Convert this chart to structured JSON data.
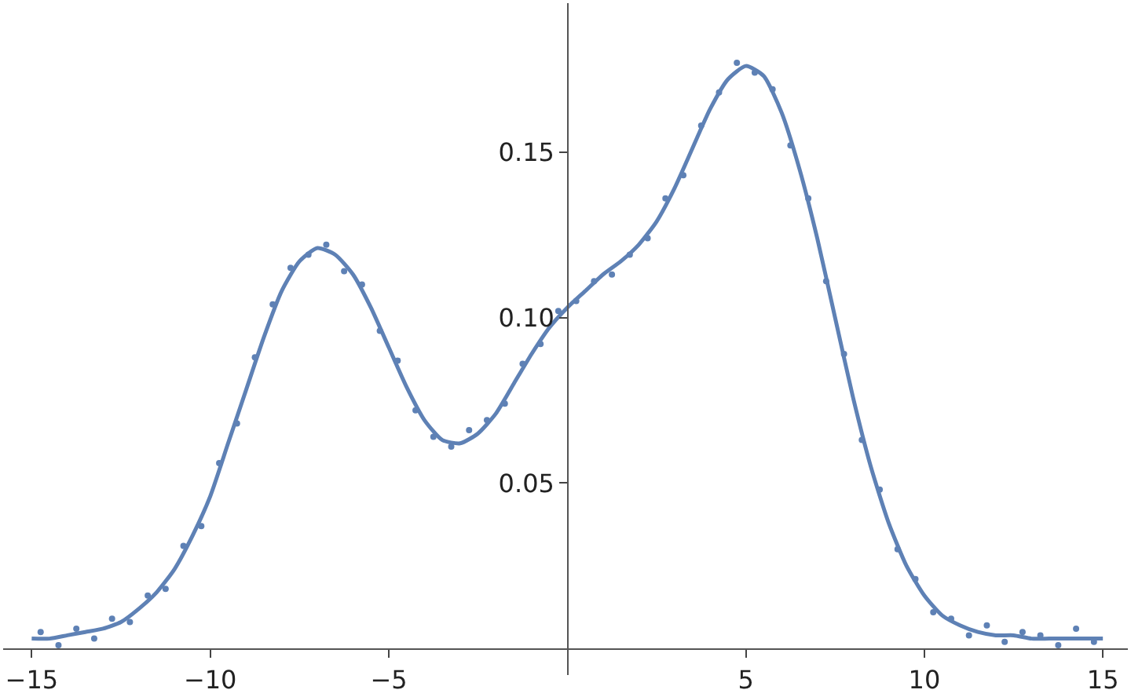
{
  "chart_data": {
    "type": "scatter",
    "xlim": [
      -15.8,
      15.7
    ],
    "ylim": [
      -0.008,
      0.195
    ],
    "xticks": [
      {
        "value": -15,
        "label": "−15"
      },
      {
        "value": -10,
        "label": "−10"
      },
      {
        "value": -5,
        "label": "−5"
      },
      5,
      10,
      15
    ],
    "yticks": [
      0.05,
      {
        "value": 0.1,
        "label": "0.10"
      },
      0.15
    ],
    "series": [
      {
        "marker": "circle",
        "color": "#5e81b5",
        "x": [
          -14.75,
          -14.25,
          -13.75,
          -13.25,
          -12.75,
          -12.25,
          -11.75,
          -11.25,
          -10.75,
          -10.25,
          -9.75,
          -9.25,
          -8.75,
          -8.25,
          -7.75,
          -7.25,
          -6.75,
          -6.25,
          -5.75,
          -5.25,
          -4.75,
          -4.25,
          -3.75,
          -3.25,
          -2.75,
          -2.25,
          -1.75,
          -1.25,
          -0.75,
          -0.25,
          0.25,
          0.75,
          1.25,
          1.75,
          2.25,
          2.75,
          3.25,
          3.75,
          4.25,
          4.75,
          5.25,
          5.75,
          6.25,
          6.75,
          7.25,
          7.75,
          8.25,
          8.75,
          9.25,
          9.75,
          10.25,
          10.75,
          11.25,
          11.75,
          12.25,
          12.75,
          13.25,
          13.75,
          14.25,
          14.75
        ],
        "values": [
          0.005,
          0.001,
          0.006,
          0.003,
          0.009,
          0.008,
          0.016,
          0.018,
          0.031,
          0.037,
          0.056,
          0.068,
          0.088,
          0.104,
          0.115,
          0.119,
          0.122,
          0.114,
          0.11,
          0.096,
          0.087,
          0.072,
          0.064,
          0.061,
          0.066,
          0.069,
          0.074,
          0.086,
          0.092,
          0.102,
          0.105,
          0.111,
          0.113,
          0.119,
          0.124,
          0.136,
          0.143,
          0.158,
          0.168,
          0.177,
          0.174,
          0.169,
          0.152,
          0.136,
          0.111,
          0.089,
          0.063,
          0.048,
          0.03,
          0.021,
          0.011,
          0.009,
          0.004,
          0.007,
          0.002,
          0.005,
          0.004,
          0.001,
          0.006,
          0.002
        ]
      },
      {
        "type": "line",
        "marker": "none",
        "line_style": "solid",
        "color": "#5e81b5",
        "x": [
          -15,
          -14.5,
          -14,
          -13.5,
          -13,
          -12.5,
          -12,
          -11.5,
          -11,
          -10.5,
          -10,
          -9.5,
          -9,
          -8.5,
          -8,
          -7.5,
          -7,
          -6.5,
          -6,
          -5.5,
          -5,
          -4.5,
          -4,
          -3.5,
          -3,
          -2.5,
          -2,
          -1.5,
          -1,
          -0.5,
          0,
          0.5,
          1,
          1.5,
          2,
          2.5,
          3,
          3.5,
          4,
          4.5,
          5,
          5.5,
          6,
          6.5,
          7,
          7.5,
          8,
          8.5,
          9,
          9.5,
          10,
          10.5,
          11,
          11.5,
          12,
          12.5,
          13,
          13.5,
          14,
          14.5,
          15
        ],
        "values": [
          0.003,
          0.003,
          0.004,
          0.005,
          0.006,
          0.008,
          0.012,
          0.017,
          0.024,
          0.034,
          0.046,
          0.062,
          0.078,
          0.094,
          0.108,
          0.117,
          0.121,
          0.119,
          0.113,
          0.103,
          0.091,
          0.079,
          0.069,
          0.063,
          0.062,
          0.065,
          0.071,
          0.08,
          0.089,
          0.097,
          0.103,
          0.108,
          0.113,
          0.117,
          0.122,
          0.129,
          0.139,
          0.151,
          0.163,
          0.172,
          0.176,
          0.173,
          0.162,
          0.145,
          0.124,
          0.1,
          0.076,
          0.055,
          0.038,
          0.025,
          0.016,
          0.01,
          0.007,
          0.005,
          0.004,
          0.004,
          0.003,
          0.003,
          0.003,
          0.003,
          0.003
        ]
      }
    ]
  }
}
